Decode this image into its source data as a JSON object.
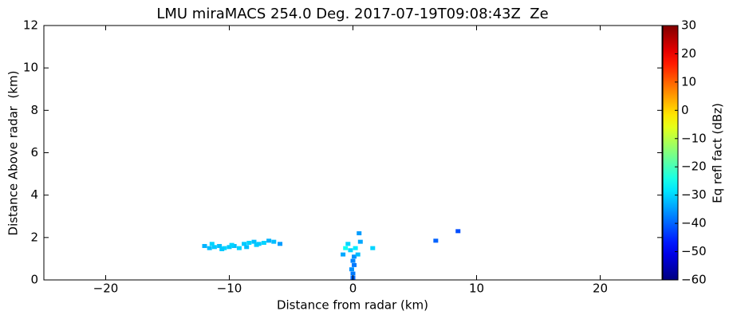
{
  "chart_data": {
    "type": "scatter",
    "title": "LMU miraMACS 254.0 Deg. 2017-07-19T09:08:43Z  Ze",
    "x_label": "Distance from radar (km)",
    "y_label": "Distance Above radar  (km)",
    "xlim": [
      -25,
      25
    ],
    "xticks": [
      {
        "value": -20,
        "label": "−20"
      },
      {
        "value": -10,
        "label": "−10"
      },
      0,
      10,
      20
    ],
    "ylim": [
      0,
      12
    ],
    "yticks": [
      0,
      2,
      4,
      6,
      8,
      10,
      12
    ],
    "colormap": "jet",
    "colorbar": {
      "label": "Eq refl fact (dBz)",
      "lim": [
        -60,
        30
      ],
      "ticks": [
        {
          "value": -60,
          "label": "−60"
        },
        {
          "value": -50,
          "label": "−50"
        },
        {
          "value": -40,
          "label": "−40"
        },
        {
          "value": -30,
          "label": "−30"
        },
        {
          "value": -20,
          "label": "−20"
        },
        {
          "value": -10,
          "label": "−10"
        },
        0,
        10,
        20,
        30
      ]
    },
    "x": [
      -12,
      -11.6,
      -11.2,
      -10.8,
      -10.4,
      -10,
      -9.6,
      -9.2,
      -8.8,
      -8.4,
      -8,
      -7.6,
      -7.2,
      -6.8,
      -6.4,
      -5.9,
      -11.4,
      -10.6,
      -9.8,
      -8.6,
      -7.8,
      0,
      0,
      -0.1,
      0.1,
      0,
      0.1,
      -0.2,
      0.2,
      0.4,
      -0.6,
      -0.4,
      0.6,
      1.6,
      0.5,
      -0.8,
      6.7,
      8.5
    ],
    "y": [
      1.6,
      1.5,
      1.55,
      1.6,
      1.5,
      1.55,
      1.6,
      1.5,
      1.7,
      1.75,
      1.8,
      1.7,
      1.75,
      1.85,
      1.8,
      1.7,
      1.7,
      1.45,
      1.65,
      1.55,
      1.65,
      0.1,
      0.3,
      0.5,
      0.7,
      0.9,
      1.1,
      1.4,
      1.5,
      1.2,
      1.5,
      1.7,
      1.8,
      1.5,
      2.2,
      1.2,
      1.85,
      2.3
    ],
    "values": [
      -33,
      -32,
      -31,
      -32,
      -30,
      -31,
      -32,
      -30,
      -31,
      -30,
      -32,
      -31,
      -30,
      -33,
      -32,
      -35,
      -30,
      -31,
      -30,
      -32,
      -31,
      -40,
      -38,
      -36,
      -38,
      -37,
      -36,
      -30,
      -28,
      -32,
      -25,
      -30,
      -34,
      -30,
      -35,
      -34,
      -40,
      -42
    ]
  }
}
